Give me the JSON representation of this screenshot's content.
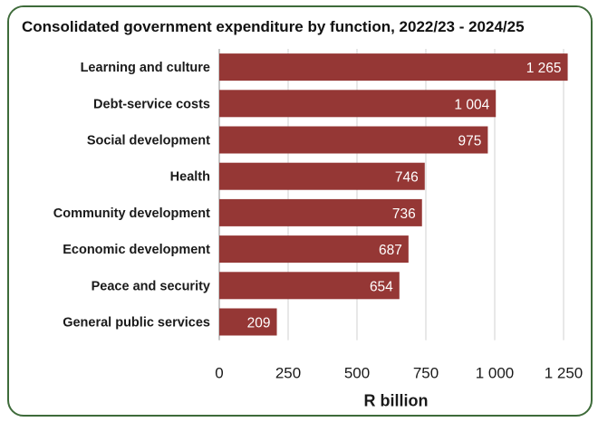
{
  "chart_data": {
    "type": "bar",
    "orientation": "horizontal",
    "title": "Consolidated government expenditure by function, 2022/23 - 2024/25",
    "xlabel": "R billion",
    "ylabel": "",
    "xlim": [
      0,
      1250
    ],
    "ticks": [
      0,
      250,
      500,
      750,
      1000,
      1250
    ],
    "tick_labels": [
      "0",
      "250",
      "500",
      "750",
      "1 000",
      "1 250"
    ],
    "grid": true,
    "bar_color": "#953735",
    "categories": [
      "Learning and culture",
      "Debt-service costs",
      "Social development",
      "Health",
      "Community development",
      "Economic development",
      "Peace and security",
      "General public services"
    ],
    "values": [
      1265,
      1004,
      975,
      746,
      736,
      687,
      654,
      209
    ],
    "value_labels": [
      "1 265",
      "1 004",
      "975",
      "746",
      "736",
      "687",
      "654",
      "209"
    ]
  }
}
